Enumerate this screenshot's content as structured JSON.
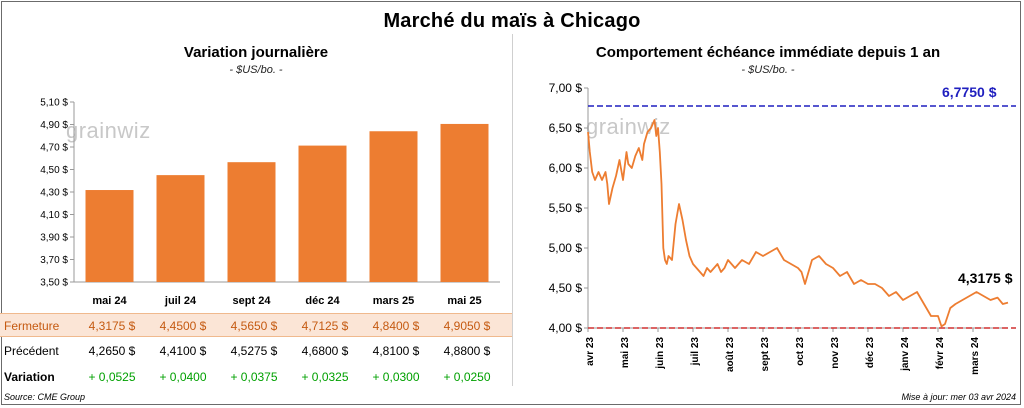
{
  "title": "Marché du maïs à Chicago",
  "colors": {
    "bar": "#ed7d31",
    "line": "#ed7d31",
    "high": "#1f1fbf",
    "low": "#d03030",
    "green": "#00a000"
  },
  "left": {
    "title": "Variation journalière",
    "unit": "- $US/bo. -",
    "watermark": "grainwiz",
    "table": {
      "rows": [
        {
          "label": "Fermeture",
          "values": [
            "4,3175  $",
            "4,4500  $",
            "4,5650  $",
            "4,7125  $",
            "4,8400  $",
            "4,9050  $"
          ]
        },
        {
          "label": "Précédent",
          "values": [
            "4,2650  $",
            "4,4100  $",
            "4,5275  $",
            "4,6800  $",
            "4,8100  $",
            "4,8800  $"
          ]
        },
        {
          "label": "Variation",
          "values": [
            "+ 0,0525",
            "+ 0,0400",
            "+ 0,0375",
            "+ 0,0325",
            "+ 0,0300",
            "+ 0,0250"
          ]
        }
      ]
    }
  },
  "right": {
    "title": "Comportement  échéance immédiate depuis 1 an",
    "unit": "- $US/bo. -",
    "watermark": "grainwiz",
    "high_label": "6,7750 $",
    "last_label": "4,3175 $"
  },
  "footer": {
    "source": "Source: CME Group",
    "update": "Mise à jour: mer 03 avr 2024"
  },
  "chart_data": [
    {
      "type": "bar",
      "title": "Variation journalière",
      "ylabel": "$US/bo.",
      "categories": [
        "mai 24",
        "juil 24",
        "sept 24",
        "déc 24",
        "mars 25",
        "mai 25"
      ],
      "values": [
        4.3175,
        4.45,
        4.565,
        4.7125,
        4.84,
        4.905
      ],
      "ylim": [
        3.5,
        5.1
      ],
      "yticks": [
        3.5,
        3.7,
        3.9,
        4.1,
        4.3,
        4.5,
        4.7,
        4.9,
        5.1
      ],
      "ytick_labels": [
        "3,50 $",
        "3,70 $",
        "3,90 $",
        "4,10 $",
        "4,30 $",
        "4,50 $",
        "4,70 $",
        "4,90 $",
        "5,10 $"
      ]
    },
    {
      "type": "line",
      "title": "Comportement  échéance immédiate depuis 1 an",
      "ylabel": "$US/bo.",
      "ylim": [
        4.0,
        7.0
      ],
      "yticks": [
        4.0,
        4.5,
        5.0,
        5.5,
        6.0,
        6.5,
        7.0
      ],
      "ytick_labels": [
        "4,00 $",
        "4,50 $",
        "5,00 $",
        "5,50 $",
        "6,00 $",
        "6,50 $",
        "7,00 $"
      ],
      "xlim": [
        0,
        12
      ],
      "xticks": [
        0,
        1,
        2,
        3,
        4,
        5,
        6,
        7,
        8,
        9,
        10,
        11
      ],
      "xtick_labels": [
        "avr 23",
        "mai 23",
        "juin 23",
        "juil 23",
        "août 23",
        "sept 23",
        "oct 23",
        "nov 23",
        "déc 23",
        "janv 24",
        "févr 24",
        "mars 24"
      ],
      "reference_lines": [
        {
          "name": "high",
          "value": 6.775,
          "label": "6,7750 $"
        },
        {
          "name": "low",
          "value": 4.0
        }
      ],
      "series": [
        {
          "name": "Échéance immédiate",
          "x": [
            0,
            0.05,
            0.12,
            0.2,
            0.3,
            0.4,
            0.5,
            0.55,
            0.6,
            0.7,
            0.8,
            0.9,
            1.0,
            1.1,
            1.15,
            1.25,
            1.35,
            1.45,
            1.55,
            1.6,
            1.7,
            1.8,
            1.9,
            1.95,
            2.0,
            2.05,
            2.1,
            2.15,
            2.2,
            2.25,
            2.3,
            2.4,
            2.5,
            2.6,
            2.7,
            2.8,
            2.9,
            3.0,
            3.1,
            3.2,
            3.3,
            3.4,
            3.5,
            3.6,
            3.7,
            3.8,
            3.9,
            4.0,
            4.2,
            4.4,
            4.6,
            4.8,
            5.0,
            5.2,
            5.4,
            5.6,
            5.8,
            6.0,
            6.1,
            6.2,
            6.4,
            6.6,
            6.8,
            7.0,
            7.2,
            7.4,
            7.6,
            7.8,
            8.0,
            8.2,
            8.4,
            8.6,
            8.8,
            9.0,
            9.2,
            9.4,
            9.6,
            9.8,
            10.0,
            10.1,
            10.2,
            10.35,
            10.5,
            10.7,
            10.9,
            11.1,
            11.3,
            11.5,
            11.7,
            11.85,
            12.0
          ],
          "values": [
            6.45,
            6.2,
            5.95,
            5.85,
            5.95,
            5.85,
            5.95,
            5.8,
            5.55,
            5.75,
            5.9,
            6.1,
            5.85,
            6.2,
            6.05,
            6.0,
            6.15,
            6.25,
            6.1,
            6.3,
            6.45,
            6.5,
            6.6,
            6.4,
            6.5,
            6.2,
            5.8,
            5.0,
            4.85,
            4.8,
            4.9,
            4.85,
            5.3,
            5.55,
            5.35,
            5.1,
            4.9,
            4.8,
            4.75,
            4.7,
            4.65,
            4.75,
            4.7,
            4.75,
            4.8,
            4.7,
            4.75,
            4.85,
            4.75,
            4.85,
            4.8,
            4.95,
            4.9,
            4.95,
            5.0,
            4.85,
            4.8,
            4.75,
            4.7,
            4.55,
            4.85,
            4.9,
            4.8,
            4.75,
            4.65,
            4.7,
            4.55,
            4.6,
            4.55,
            4.55,
            4.5,
            4.4,
            4.45,
            4.35,
            4.4,
            4.45,
            4.3,
            4.15,
            4.15,
            4.02,
            4.05,
            4.25,
            4.3,
            4.35,
            4.4,
            4.45,
            4.4,
            4.35,
            4.38,
            4.3,
            4.3175
          ]
        }
      ]
    }
  ]
}
